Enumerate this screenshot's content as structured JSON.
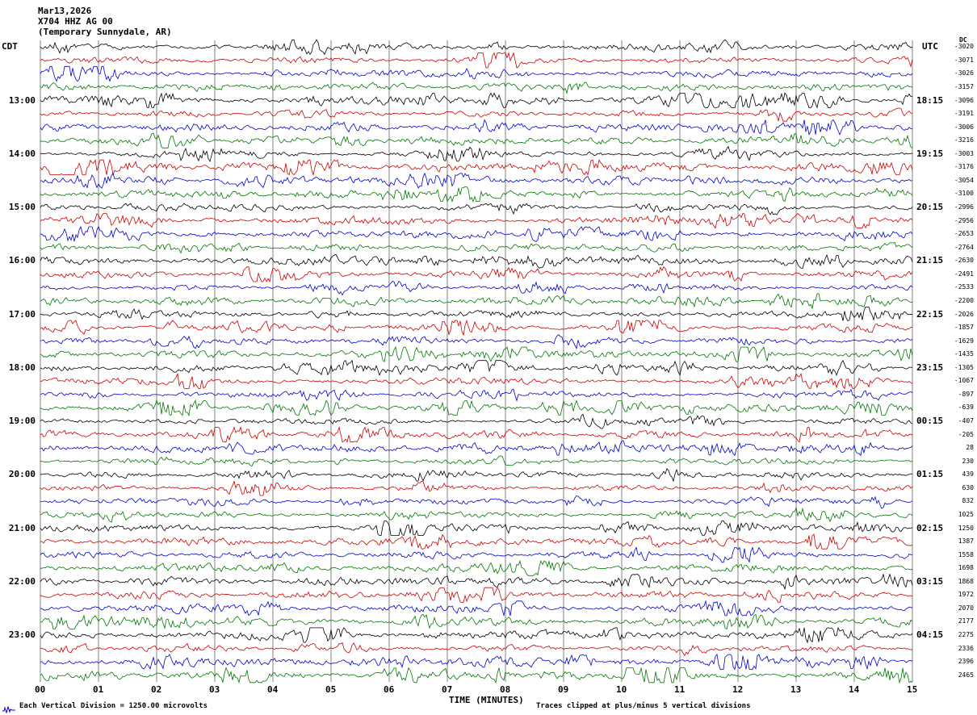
{
  "header": {
    "date": "Mar13,2026",
    "station": "X704 HHZ AG 00",
    "location": "(Temporary Sunnydale, AR)"
  },
  "left_axis": {
    "title": "CDT"
  },
  "right_axis": {
    "title": "UTC"
  },
  "dc_column": {
    "header": "DC"
  },
  "x_axis": {
    "title": "TIME (MINUTES)"
  },
  "footer": {
    "left_note": "Each Vertical Division = 1250.00 microvolts",
    "right_note": "Traces clipped at plus/minus 5 vertical divisions"
  },
  "chart_data": {
    "type": "line",
    "title": "X704 HHZ AG 00 (Temporary Sunnydale, AR) Mar13,2026 helicorder",
    "xlabel": "TIME (MINUTES)",
    "x_range_minutes": [
      0,
      15
    ],
    "x_ticks": [
      "00",
      "01",
      "02",
      "03",
      "04",
      "05",
      "06",
      "07",
      "08",
      "09",
      "10",
      "11",
      "12",
      "13",
      "14",
      "15"
    ],
    "rows": 48,
    "minutes_per_row": 15,
    "trace_colors_cycle": [
      "#000000",
      "#cc0000",
      "#0000cc",
      "#007700"
    ],
    "grid_color": "#808080",
    "first_hour_label_row": 4,
    "hour_label_row_step": 4,
    "left_hour_labels_cdt": [
      "13:00",
      "14:00",
      "15:00",
      "16:00",
      "17:00",
      "18:00",
      "19:00",
      "20:00",
      "21:00",
      "22:00",
      "23:00"
    ],
    "right_hour_labels_utc": [
      "18:15",
      "19:15",
      "20:15",
      "21:15",
      "22:15",
      "23:15",
      "00:15",
      "01:15",
      "02:15",
      "03:15",
      "04:15"
    ],
    "dc_offsets": [
      "-3020",
      "-3071",
      "-3026",
      "-3157",
      "-3096",
      "-3191",
      "-3006",
      "-3216",
      "-3003",
      "-3176",
      "-3054",
      "-3100",
      "-2996",
      "-2956",
      "-2653",
      "-2764",
      "-2630",
      "-2491",
      "-2533",
      "-2200",
      "-2026",
      "-1857",
      "-1629",
      "-1435",
      "-1305",
      "-1067",
      "-897",
      "-639",
      "-407",
      "-205",
      "28",
      "230",
      "439",
      "630",
      "832",
      "1025",
      "1250",
      "1387",
      "1558",
      "1698",
      "1868",
      "1972",
      "2070",
      "2177",
      "2275",
      "2336",
      "2396",
      "2465"
    ],
    "vertical_division_microvolts": "1250.00",
    "clip_divisions": 5,
    "noise_seed": 20260313
  }
}
